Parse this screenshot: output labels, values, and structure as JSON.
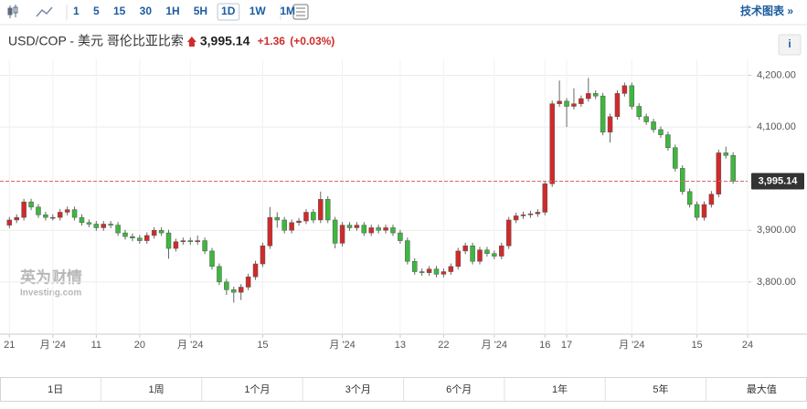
{
  "toolbar": {
    "intervals": [
      "1",
      "5",
      "15",
      "30",
      "1H",
      "5H",
      "1D",
      "1W",
      "1M"
    ],
    "selected_interval": 6,
    "link": "技术图表 »"
  },
  "header": {
    "title": "USD/COP - 美元 哥伦比亚比索",
    "price": "3,995.14",
    "change": "+1.36",
    "change_pct": "(+0.03%)",
    "info": "i"
  },
  "watermark": {
    "brand": "英为财情",
    "site": "Investing.com"
  },
  "chart_data": {
    "type": "candlestick",
    "up_color": "#d12a2a",
    "down_color": "#3db83d",
    "grid": true,
    "ylim": [
      3699,
      4231
    ],
    "xlim": [
      -1.3,
      102
    ],
    "yticks": [
      {
        "value": 3800,
        "label": "3,800.00"
      },
      {
        "value": 3900,
        "label": "3,900.00"
      },
      {
        "value": 4100,
        "label": "4,100.00"
      },
      {
        "value": 4200,
        "label": "4,200.00"
      }
    ],
    "xticks": [
      {
        "value": 0,
        "label": "21"
      },
      {
        "value": 6,
        "label": "月 '24"
      },
      {
        "value": 12,
        "label": "11"
      },
      {
        "value": 18,
        "label": "20"
      },
      {
        "value": 25,
        "label": "月 '24"
      },
      {
        "value": 35,
        "label": "15"
      },
      {
        "value": 46,
        "label": "月 '24"
      },
      {
        "value": 54,
        "label": "13"
      },
      {
        "value": 60,
        "label": "22"
      },
      {
        "value": 67,
        "label": "月 '24"
      },
      {
        "value": 74,
        "label": "16"
      },
      {
        "value": 77,
        "label": "17"
      },
      {
        "value": 86,
        "label": "月 '24"
      },
      {
        "value": 95,
        "label": "15"
      },
      {
        "value": 102,
        "label": "24"
      }
    ],
    "last_price": {
      "value": 3995.14,
      "label": "3,995.14"
    },
    "open": [
      3910,
      3920,
      3925,
      3955,
      3945,
      3930,
      3925,
      3925,
      3935,
      3940,
      3925,
      3915,
      3912,
      3905,
      3912,
      3910,
      3895,
      3888,
      3885,
      3880,
      3890,
      3900,
      3895,
      3865,
      3878,
      3880,
      3878,
      3880,
      3860,
      3830,
      3800,
      3785,
      3780,
      3790,
      3810,
      3835,
      3870,
      3925,
      3920,
      3900,
      3915,
      3918,
      3935,
      3920,
      3960,
      3920,
      3875,
      3910,
      3905,
      3910,
      3895,
      3905,
      3900,
      3905,
      3895,
      3880,
      3840,
      3820,
      3818,
      3825,
      3815,
      3820,
      3830,
      3860,
      3870,
      3840,
      3862,
      3855,
      3850,
      3870,
      3920,
      3928,
      3930,
      3932,
      3935,
      3990,
      4145,
      4150,
      4140,
      4145,
      4155,
      4165,
      4160,
      4090,
      4120,
      4165,
      4180,
      4140,
      4120,
      4110,
      4095,
      4085,
      4060,
      4020,
      3975,
      3950,
      3925,
      3950,
      3970,
      4050,
      4045
    ],
    "high": [
      3926,
      3931,
      3961,
      3961,
      3951,
      3936,
      3931,
      3941,
      3946,
      3946,
      3931,
      3921,
      3918,
      3918,
      3918,
      3916,
      3901,
      3894,
      3891,
      3896,
      3906,
      3906,
      3901,
      3884,
      3886,
      3886,
      3890,
      3886,
      3866,
      3836,
      3806,
      3791,
      3796,
      3816,
      3841,
      3876,
      3945,
      3935,
      3926,
      3921,
      3924,
      3941,
      3941,
      3975,
      3966,
      3926,
      3916,
      3916,
      3916,
      3916,
      3911,
      3911,
      3911,
      3911,
      3901,
      3886,
      3846,
      3826,
      3831,
      3831,
      3826,
      3836,
      3866,
      3876,
      3876,
      3868,
      3868,
      3861,
      3876,
      3926,
      3934,
      3936,
      3938,
      3941,
      3996,
      4151,
      4190,
      4156,
      4175,
      4161,
      4195,
      4171,
      4166,
      4126,
      4171,
      4186,
      4186,
      4146,
      4126,
      4116,
      4101,
      4091,
      4066,
      4026,
      3981,
      3956,
      3956,
      3976,
      4056,
      4062,
      4051
    ],
    "low": [
      3904,
      3914,
      3919,
      3939,
      3924,
      3919,
      3919,
      3919,
      3929,
      3919,
      3909,
      3906,
      3899,
      3899,
      3904,
      3889,
      3882,
      3879,
      3874,
      3874,
      3884,
      3889,
      3845,
      3859,
      3872,
      3872,
      3872,
      3854,
      3824,
      3794,
      3775,
      3760,
      3765,
      3784,
      3804,
      3829,
      3864,
      3905,
      3894,
      3894,
      3909,
      3912,
      3914,
      3914,
      3914,
      3865,
      3869,
      3899,
      3899,
      3889,
      3889,
      3894,
      3894,
      3889,
      3874,
      3834,
      3814,
      3812,
      3812,
      3809,
      3809,
      3814,
      3824,
      3854,
      3834,
      3834,
      3849,
      3844,
      3844,
      3864,
      3914,
      3922,
      3924,
      3926,
      3929,
      3984,
      4139,
      4100,
      4134,
      4139,
      4149,
      4154,
      4084,
      4070,
      4114,
      4159,
      4134,
      4114,
      4104,
      4089,
      4079,
      4054,
      4014,
      3969,
      3944,
      3919,
      3919,
      3944,
      3964,
      4039,
      3990
    ],
    "close": [
      3920,
      3925,
      3955,
      3945,
      3930,
      3925,
      3925,
      3935,
      3940,
      3925,
      3915,
      3912,
      3905,
      3912,
      3910,
      3895,
      3888,
      3885,
      3880,
      3890,
      3900,
      3895,
      3865,
      3878,
      3880,
      3878,
      3880,
      3860,
      3830,
      3800,
      3785,
      3780,
      3790,
      3810,
      3835,
      3870,
      3925,
      3920,
      3900,
      3915,
      3918,
      3935,
      3920,
      3960,
      3920,
      3875,
      3910,
      3905,
      3910,
      3895,
      3905,
      3900,
      3905,
      3895,
      3880,
      3840,
      3820,
      3818,
      3825,
      3815,
      3820,
      3830,
      3860,
      3870,
      3840,
      3862,
      3855,
      3850,
      3870,
      3920,
      3928,
      3930,
      3932,
      3935,
      3990,
      4145,
      4150,
      4140,
      4145,
      4155,
      4165,
      4160,
      4090,
      4120,
      4165,
      4180,
      4140,
      4120,
      4110,
      4095,
      4085,
      4060,
      4020,
      3975,
      3950,
      3925,
      3950,
      3970,
      4050,
      4045,
      3995.14
    ]
  },
  "ranges": [
    "1日",
    "1周",
    "1个月",
    "3个月",
    "6个月",
    "1年",
    "5年",
    "最大值"
  ]
}
